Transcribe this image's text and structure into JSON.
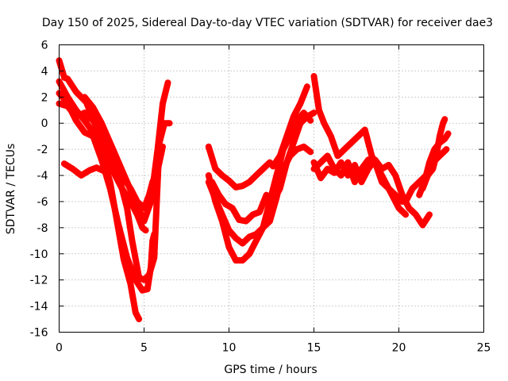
{
  "chart_data": {
    "type": "scatter",
    "title": "Day 150 of 2025, Sidereal Day-to-day VTEC variation (SDTVAR) for receiver dae3",
    "xlabel": "GPS time / hours",
    "ylabel": "SDTVAR / TECUs",
    "xlim": [
      0,
      25
    ],
    "ylim": [
      -16,
      6
    ],
    "grid": true,
    "xticks": [
      0,
      5,
      10,
      15,
      20,
      25
    ],
    "yticks": [
      -16,
      -14,
      -12,
      -10,
      -8,
      -6,
      -4,
      -2,
      0,
      2,
      4,
      6
    ],
    "marker": "plus",
    "color": "#ff0000",
    "series": [
      {
        "name": "trace-1",
        "x": [
          0.0,
          0.3,
          0.5,
          1.0,
          1.6,
          2.1,
          2.6,
          3.1,
          3.7,
          4.2,
          4.6,
          4.9,
          5.1
        ],
        "y": [
          4.8,
          3.5,
          3.4,
          2.4,
          1.6,
          0.0,
          -1.5,
          -3.5,
          -5.0,
          -6.0,
          -7.0,
          -8.0,
          -8.2
        ]
      },
      {
        "name": "trace-2",
        "x": [
          0.0,
          0.5,
          1.0,
          1.5,
          2.0,
          2.5,
          3.0,
          3.5,
          3.8,
          4.2,
          4.5,
          4.7
        ],
        "y": [
          3.2,
          2.0,
          1.0,
          0.2,
          -0.7,
          -2.3,
          -4.5,
          -8.2,
          -10.4,
          -12.3,
          -14.5,
          -15.0
        ]
      },
      {
        "name": "trace-3",
        "x": [
          0.0,
          0.5,
          1.0,
          1.5,
          2.0,
          2.5,
          3.0,
          3.5,
          4.0,
          4.5,
          4.9,
          5.2,
          5.4,
          5.5,
          5.6
        ],
        "y": [
          2.3,
          1.5,
          0.2,
          -0.7,
          -1.0,
          -2.8,
          -5.0,
          -7.8,
          -10.3,
          -12.0,
          -12.8,
          -12.7,
          -11.0,
          -9.0,
          -8.5
        ]
      },
      {
        "name": "trace-4",
        "x": [
          0.3,
          0.8,
          1.3,
          1.8,
          2.2,
          2.7,
          3.2,
          3.7,
          4.2,
          4.6,
          5.0,
          5.3,
          5.5,
          5.8,
          6.1
        ],
        "y": [
          -3.1,
          -3.5,
          -4.0,
          -3.6,
          -3.4,
          -3.7,
          -3.3,
          -4.0,
          -5.0,
          -6.0,
          -6.5,
          -5.5,
          -4.5,
          -3.6,
          -1.8
        ]
      },
      {
        "name": "trace-5",
        "x": [
          0.0,
          0.5,
          1.0,
          1.5,
          2.0,
          2.5,
          3.0,
          3.5,
          4.0,
          4.3,
          4.7,
          5.0,
          5.3,
          5.6,
          5.9,
          6.2,
          6.5
        ],
        "y": [
          1.5,
          1.3,
          0.5,
          0.8,
          0.2,
          -1.0,
          -2.0,
          -4.0,
          -6.5,
          -9.0,
          -11.8,
          -12.0,
          -11.6,
          -10.3,
          -1.5,
          0.0,
          0.0
        ]
      },
      {
        "name": "trace-6",
        "x": [
          1.5,
          2.0,
          2.5,
          3.0,
          3.5,
          4.0,
          4.5,
          5.0,
          5.4,
          5.8,
          6.1,
          6.4
        ],
        "y": [
          2.0,
          1.2,
          0.0,
          -1.5,
          -3.0,
          -4.5,
          -6.0,
          -7.5,
          -6.0,
          -2.0,
          1.5,
          3.1
        ]
      },
      {
        "name": "trace-7",
        "x": [
          8.8,
          9.2,
          9.6,
          10.0,
          10.4,
          10.8,
          11.2,
          11.6,
          12.0,
          12.4,
          12.8,
          13.2,
          13.6,
          14.0,
          14.4,
          14.8
        ],
        "y": [
          -4.5,
          -5.8,
          -7.0,
          -8.2,
          -8.8,
          -9.2,
          -8.7,
          -8.5,
          -8.0,
          -7.5,
          -5.7,
          -3.5,
          -2.5,
          -2.0,
          -1.8,
          -2.2
        ]
      },
      {
        "name": "trace-8",
        "x": [
          8.8,
          9.2,
          9.6,
          10.0,
          10.4,
          10.8,
          11.2,
          11.6,
          12.0,
          12.4,
          12.8,
          13.2,
          13.6,
          14.0,
          14.4,
          14.8
        ],
        "y": [
          -4.0,
          -6.0,
          -7.5,
          -9.5,
          -10.5,
          -10.5,
          -10.0,
          -9.0,
          -8.0,
          -6.0,
          -4.0,
          -2.0,
          -1.0,
          0.2,
          0.8,
          0.2
        ]
      },
      {
        "name": "trace-9",
        "x": [
          8.8,
          9.2,
          9.6,
          10.0,
          10.4,
          10.8,
          11.2,
          11.6,
          12.0,
          12.4,
          12.6,
          13.0,
          13.4,
          13.8,
          14.2,
          14.6
        ],
        "y": [
          -1.8,
          -3.5,
          -4.0,
          -4.4,
          -4.9,
          -4.8,
          -4.5,
          -4.0,
          -3.5,
          -3.0,
          -3.3,
          -2.5,
          -1.0,
          0.5,
          1.5,
          2.8
        ]
      },
      {
        "name": "trace-10",
        "x": [
          9.0,
          9.4,
          9.8,
          10.2,
          10.6,
          11.0,
          11.4,
          11.8,
          12.2,
          12.6,
          13.0,
          13.4,
          13.8,
          14.2,
          14.6,
          15.0
        ],
        "y": [
          -4.5,
          -5.5,
          -6.2,
          -6.5,
          -7.4,
          -7.5,
          -7.0,
          -6.8,
          -5.5,
          -6.0,
          -5.0,
          -3.0,
          -1.5,
          0.0,
          0.5,
          0.8
        ]
      },
      {
        "name": "trace-11",
        "x": [
          15.0,
          15.3,
          15.6,
          16.0,
          16.4,
          16.8,
          17.2,
          17.6,
          18.0,
          18.4,
          18.8,
          19.2,
          19.6,
          20.0,
          20.4
        ],
        "y": [
          3.6,
          1.0,
          0.0,
          -1.0,
          -2.5,
          -2.0,
          -1.5,
          -1.0,
          -0.5,
          -2.5,
          -3.5,
          -4.5,
          -5.5,
          -6.5,
          -7.0
        ]
      },
      {
        "name": "trace-12",
        "x": [
          15.0,
          15.4,
          15.8,
          16.2,
          16.6,
          17.0,
          17.4,
          17.8,
          18.2,
          18.6,
          19.0,
          19.4,
          19.8,
          20.2,
          20.6,
          21.0,
          21.4,
          21.8
        ],
        "y": [
          -3.0,
          -4.2,
          -3.5,
          -3.8,
          -3.0,
          -4.0,
          -3.2,
          -4.5,
          -3.5,
          -2.8,
          -3.5,
          -3.2,
          -4.0,
          -5.5,
          -6.5,
          -7.0,
          -7.8,
          -7.0
        ]
      },
      {
        "name": "trace-13",
        "x": [
          15.0,
          15.4,
          15.8,
          16.2,
          16.6,
          17.0,
          17.4,
          17.8,
          18.2,
          18.6,
          19.0,
          19.4,
          19.8,
          20.2
        ],
        "y": [
          -3.5,
          -3.0,
          -2.5,
          -3.5,
          -4.0,
          -3.0,
          -4.5,
          -3.5,
          -2.8,
          -3.0,
          -4.5,
          -5.0,
          -5.5,
          -6.0
        ]
      },
      {
        "name": "trace-14",
        "x": [
          20.4,
          20.8,
          21.2,
          21.6,
          22.0,
          22.4,
          22.8
        ],
        "y": [
          -6.0,
          -5.0,
          -4.5,
          -4.0,
          -3.0,
          -2.5,
          -2.0
        ]
      },
      {
        "name": "trace-15",
        "x": [
          21.2,
          21.5,
          21.8,
          22.1,
          22.4,
          22.7,
          22.9
        ],
        "y": [
          -5.5,
          -4.5,
          -3.0,
          -2.0,
          -1.5,
          -1.2,
          -0.8
        ]
      },
      {
        "name": "trace-16",
        "x": [
          21.4,
          21.7,
          22.0,
          22.2,
          22.4,
          22.6,
          22.7
        ],
        "y": [
          -5.0,
          -4.0,
          -3.5,
          -2.5,
          -1.0,
          0.0,
          0.3
        ]
      }
    ]
  }
}
